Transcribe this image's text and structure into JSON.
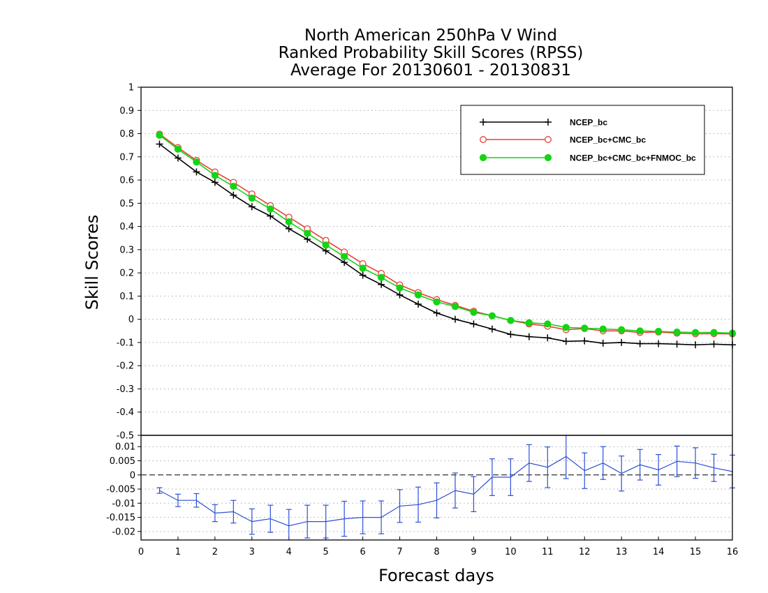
{
  "title": {
    "line1": "North American 250hPa V Wind",
    "line2": "Ranked Probability Skill Scores (RPSS)",
    "line3": "Average For 20130601 - 20130831"
  },
  "colors": {
    "series_black": "#000000",
    "series_red": "#e8403a",
    "series_green": "#14d414",
    "diff": "#2b50d6",
    "grid": "#aaaaaa"
  },
  "chart_data": [
    {
      "type": "line",
      "panel": "upper",
      "xlabel": "",
      "ylabel": "Skill Scores",
      "xlim": [
        0,
        16
      ],
      "ylim": [
        -0.5,
        1
      ],
      "yticks": [
        "1",
        "0.9",
        "0.8",
        "0.7",
        "0.6",
        "0.5",
        "0.4",
        "0.3",
        "0.2",
        "0.1",
        "0",
        "-0.1",
        "-0.2",
        "-0.3",
        "-0.4",
        "-0.5"
      ],
      "grid": true,
      "legend_position": "top-right",
      "x": [
        0.5,
        1,
        1.5,
        2,
        2.5,
        3,
        3.5,
        4,
        4.5,
        5,
        5.5,
        6,
        6.5,
        7,
        7.5,
        8,
        8.5,
        9,
        9.5,
        10,
        10.5,
        11,
        11.5,
        12,
        12.5,
        13,
        13.5,
        14,
        14.5,
        15,
        15.5,
        16
      ],
      "series": [
        {
          "name": "NCEP_bc",
          "marker": "plus",
          "values": [
            0.755,
            0.695,
            0.635,
            0.59,
            0.535,
            0.485,
            0.445,
            0.39,
            0.345,
            0.295,
            0.245,
            0.19,
            0.15,
            0.105,
            0.065,
            0.027,
            0.0,
            -0.02,
            -0.042,
            -0.065,
            -0.075,
            -0.08,
            -0.095,
            -0.093,
            -0.103,
            -0.1,
            -0.105,
            -0.105,
            -0.107,
            -0.11,
            -0.107,
            -0.11
          ]
        },
        {
          "name": "NCEP_bc+CMC_bc",
          "marker": "open-circle",
          "values": [
            0.798,
            0.74,
            0.685,
            0.635,
            0.59,
            0.54,
            0.49,
            0.44,
            0.39,
            0.34,
            0.29,
            0.24,
            0.198,
            0.148,
            0.115,
            0.085,
            0.06,
            0.035,
            0.015,
            -0.005,
            -0.02,
            -0.03,
            -0.045,
            -0.04,
            -0.05,
            -0.05,
            -0.057,
            -0.055,
            -0.06,
            -0.063,
            -0.062,
            -0.063
          ]
        },
        {
          "name": "NCEP_bc+CMC_bc+FNMOC_bc",
          "marker": "filled-circle",
          "values": [
            0.793,
            0.733,
            0.678,
            0.62,
            0.573,
            0.522,
            0.475,
            0.42,
            0.37,
            0.32,
            0.27,
            0.22,
            0.18,
            0.135,
            0.105,
            0.075,
            0.055,
            0.03,
            0.015,
            -0.005,
            -0.015,
            -0.02,
            -0.035,
            -0.038,
            -0.042,
            -0.045,
            -0.05,
            -0.052,
            -0.055,
            -0.057,
            -0.057,
            -0.06
          ]
        }
      ]
    },
    {
      "type": "line",
      "panel": "lower",
      "xlabel": "Forecast days",
      "xlim": [
        0,
        16
      ],
      "ylim": [
        -0.023,
        0.014
      ],
      "xticks": [
        "0",
        "1",
        "2",
        "3",
        "4",
        "5",
        "6",
        "7",
        "8",
        "9",
        "10",
        "11",
        "12",
        "13",
        "14",
        "15",
        "16"
      ],
      "yticks": [
        "0.01",
        "0.005",
        "0",
        "-0.005",
        "-0.01",
        "-0.015",
        "-0.02"
      ],
      "grid": true,
      "x": [
        0.5,
        1,
        1.5,
        2,
        2.5,
        3,
        3.5,
        4,
        4.5,
        5,
        5.5,
        6,
        6.5,
        7,
        7.5,
        8,
        8.5,
        9,
        9.5,
        10,
        10.5,
        11,
        11.5,
        12,
        12.5,
        13,
        13.5,
        14,
        14.5,
        15,
        15.5,
        16
      ],
      "series": [
        {
          "name": "",
          "values": [
            -0.0055,
            -0.009,
            -0.009,
            -0.0135,
            -0.013,
            -0.0165,
            -0.0155,
            -0.018,
            -0.0165,
            -0.0165,
            -0.0155,
            -0.015,
            -0.015,
            -0.011,
            -0.0105,
            -0.009,
            -0.0055,
            -0.0068,
            -0.0008,
            -0.0008,
            0.0042,
            0.0027,
            0.0065,
            0.0015,
            0.0042,
            0.0005,
            0.0036,
            0.0018,
            0.0048,
            0.0042,
            0.0025,
            0.0012
          ],
          "error": [
            0.001,
            0.0022,
            0.0024,
            0.003,
            0.004,
            0.0045,
            0.0048,
            0.0058,
            0.0058,
            0.0058,
            0.0062,
            0.0058,
            0.0058,
            0.0058,
            0.0062,
            0.0062,
            0.0062,
            0.0062,
            0.0065,
            0.0065,
            0.0065,
            0.0072,
            0.0078,
            0.0063,
            0.0058,
            0.0062,
            0.0054,
            0.0054,
            0.0054,
            0.0054,
            0.0048,
            0.0058
          ]
        }
      ]
    }
  ]
}
